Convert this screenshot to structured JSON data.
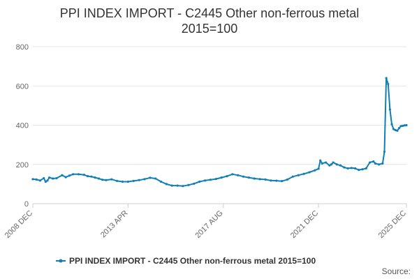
{
  "chart_data": {
    "type": "line",
    "title_lines": [
      "PPI INDEX IMPORT - C2445 Other non-ferrous metal",
      "2015=100"
    ],
    "xlabel": "",
    "ylabel": "",
    "ylim": [
      0,
      800
    ],
    "yticks": [
      0,
      200,
      400,
      600,
      800
    ],
    "xlim": [
      2008.917,
      2025.917
    ],
    "xticks": [
      {
        "label": "2008 DEC",
        "x": 2008.917
      },
      {
        "label": "2013 APR",
        "x": 2013.25
      },
      {
        "label": "2017 AUG",
        "x": 2017.583
      },
      {
        "label": "2021 DEC",
        "x": 2021.917
      },
      {
        "label": "2025 DEC",
        "x": 2025.917
      }
    ],
    "grid": true,
    "legend": "bottom-center",
    "source_label": "Source:",
    "colors": {
      "series": "#0f7fb8",
      "grid": "#e6e6e6",
      "axis": "#c0d0e0"
    },
    "series": [
      {
        "name": "PPI INDEX IMPORT - C2445 Other non-ferrous metal 2015=100",
        "x": [
          2008.917,
          2009.083,
          2009.25,
          2009.417,
          2009.5,
          2009.583,
          2009.667,
          2009.833,
          2010.0,
          2010.25,
          2010.417,
          2010.583,
          2010.75,
          2011.0,
          2011.25,
          2011.417,
          2011.583,
          2011.75,
          2011.917,
          2012.083,
          2012.25,
          2012.5,
          2012.75,
          2013.0,
          2013.25,
          2013.5,
          2013.75,
          2014.0,
          2014.25,
          2014.5,
          2014.75,
          2015.0,
          2015.25,
          2015.5,
          2015.75,
          2016.0,
          2016.25,
          2016.5,
          2016.75,
          2017.0,
          2017.25,
          2017.5,
          2017.75,
          2018.0,
          2018.25,
          2018.5,
          2018.75,
          2019.0,
          2019.25,
          2019.5,
          2019.75,
          2020.0,
          2020.25,
          2020.5,
          2020.75,
          2021.0,
          2021.25,
          2021.5,
          2021.75,
          2021.917,
          2022.0,
          2022.083,
          2022.25,
          2022.417,
          2022.5,
          2022.583,
          2022.75,
          2022.917,
          2023.083,
          2023.25,
          2023.417,
          2023.583,
          2023.75,
          2023.917,
          2024.083,
          2024.25,
          2024.417,
          2024.5,
          2024.667,
          2024.833,
          2024.917,
          2025.0,
          2025.083,
          2025.167,
          2025.25,
          2025.333,
          2025.417,
          2025.5,
          2025.583,
          2025.667,
          2025.75,
          2025.833,
          2025.917
        ],
        "values": [
          125,
          123,
          118,
          130,
          112,
          118,
          133,
          128,
          130,
          145,
          135,
          143,
          150,
          150,
          147,
          140,
          138,
          133,
          128,
          122,
          120,
          124,
          116,
          112,
          112,
          116,
          120,
          125,
          132,
          128,
          112,
          100,
          92,
          92,
          90,
          95,
          102,
          112,
          118,
          122,
          126,
          133,
          140,
          150,
          145,
          138,
          133,
          128,
          125,
          123,
          118,
          117,
          115,
          123,
          138,
          145,
          152,
          160,
          170,
          178,
          220,
          205,
          210,
          195,
          200,
          210,
          200,
          195,
          185,
          180,
          182,
          180,
          172,
          175,
          180,
          210,
          215,
          205,
          200,
          205,
          265,
          640,
          610,
          480,
          405,
          380,
          375,
          372,
          385,
          395,
          397,
          399,
          400
        ]
      }
    ]
  }
}
